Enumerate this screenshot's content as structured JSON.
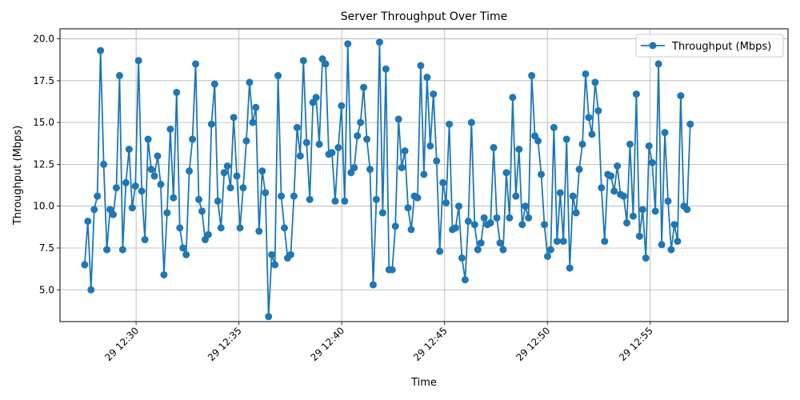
{
  "chart_data": {
    "type": "line",
    "title": "Server Throughput Over Time",
    "xlabel": "Time",
    "ylabel": "Throughput (Mbps)",
    "ylim": [
      3.1,
      20.6
    ],
    "xlim_minutes": [
      26.3,
      61.7
    ],
    "grid": true,
    "legend_position": "top-right",
    "x_ticks": [
      {
        "label": "29 12:30",
        "minute": 30
      },
      {
        "label": "29 12:35",
        "minute": 35
      },
      {
        "label": "29 12:40",
        "minute": 40
      },
      {
        "label": "29 12:45",
        "minute": 45
      },
      {
        "label": "29 12:50",
        "minute": 50
      },
      {
        "label": "29 12:55",
        "minute": 55
      }
    ],
    "y_ticks": [
      {
        "label": "5.0",
        "value": 5
      },
      {
        "label": "7.5",
        "value": 7.5
      },
      {
        "label": "10.0",
        "value": 10
      },
      {
        "label": "12.5",
        "value": 12.5
      },
      {
        "label": "15.0",
        "value": 15
      },
      {
        "label": "17.5",
        "value": 17.5
      },
      {
        "label": "20.0",
        "value": 20
      }
    ],
    "series": [
      {
        "name": "Throughput (Mbps)",
        "color": "#1f77b4",
        "marker": "circle",
        "x_start": "12:27:30",
        "x_step_seconds": 9.25,
        "values": [
          6.5,
          9.1,
          5.0,
          9.8,
          10.6,
          19.3,
          12.5,
          7.4,
          9.8,
          9.5,
          11.1,
          17.8,
          7.4,
          11.4,
          13.4,
          9.9,
          11.2,
          18.7,
          10.9,
          8.0,
          14.0,
          12.2,
          11.8,
          13.0,
          11.3,
          5.9,
          9.6,
          14.6,
          10.5,
          16.8,
          8.7,
          7.5,
          7.1,
          12.1,
          14.0,
          18.5,
          10.4,
          9.7,
          8.0,
          8.3,
          14.9,
          17.3,
          10.3,
          8.7,
          12.0,
          12.4,
          11.1,
          15.3,
          11.8,
          8.7,
          11.1,
          13.9,
          17.4,
          15.0,
          15.9,
          8.5,
          12.1,
          10.8,
          3.4,
          7.1,
          6.5,
          17.8,
          10.6,
          8.7,
          6.9,
          7.1,
          10.6,
          14.7,
          13.0,
          18.7,
          13.8,
          10.4,
          16.2,
          16.5,
          13.7,
          18.8,
          18.5,
          13.1,
          13.2,
          10.3,
          13.5,
          16.0,
          10.3,
          19.7,
          12.0,
          12.3,
          14.2,
          15.0,
          17.1,
          14.0,
          12.2,
          5.3,
          10.4,
          19.8,
          9.6,
          18.2,
          6.2,
          6.2,
          8.8,
          15.2,
          12.3,
          13.3,
          9.9,
          8.6,
          10.6,
          10.5,
          18.4,
          11.9,
          17.7,
          13.6,
          16.7,
          12.7,
          7.3,
          11.4,
          10.2,
          14.9,
          8.6,
          8.7,
          10.0,
          6.9,
          5.6,
          9.1,
          15.0,
          8.9,
          7.4,
          7.8,
          9.3,
          8.9,
          9.0,
          13.5,
          9.3,
          7.8,
          7.4,
          12.0,
          9.3,
          16.5,
          10.6,
          13.4,
          8.9,
          10.0,
          9.3,
          17.8,
          14.2,
          13.9,
          11.9,
          8.9,
          7.0,
          7.4,
          14.7,
          7.9,
          10.8,
          7.9,
          14.0,
          6.3,
          10.6,
          9.6,
          12.2,
          13.7,
          17.9,
          15.3,
          14.3,
          17.4,
          15.7,
          11.1,
          7.9,
          11.9,
          11.8,
          10.9,
          12.4,
          10.7,
          10.6,
          9.0,
          13.7,
          9.4,
          16.7,
          8.2,
          9.8,
          6.9,
          13.6,
          12.6,
          9.7,
          18.5,
          7.7,
          14.4,
          10.3,
          7.4,
          8.9,
          7.9,
          16.6,
          10.0,
          9.8,
          14.9
        ]
      }
    ]
  }
}
